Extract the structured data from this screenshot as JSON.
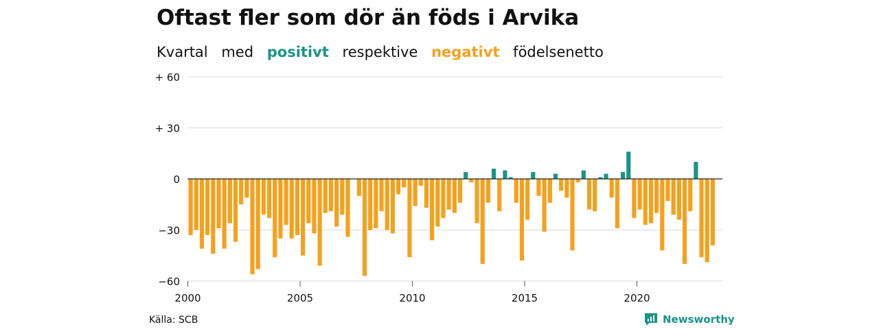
{
  "title": "Oftast fler som dör än föds i Arvika",
  "subtitle": {
    "part1": "Kvartal",
    "part2": "med",
    "positive_word": "positivt",
    "part3": "respektive",
    "negative_word": "negativt",
    "part4": "födelsenetto"
  },
  "source": "Källa: SCB",
  "brand": "Newsworthy",
  "colors": {
    "positive": "#1a9485",
    "negative": "#f4a11d",
    "grid": "#d9d9d9",
    "zero": "#222222"
  },
  "chart_data": {
    "type": "bar",
    "title": "Oftast fler som dör än föds i Arvika",
    "subtitle": "Kvartal med positivt respektive negativt födelsenetto",
    "x_start": "2000-Q1",
    "period": "quarter",
    "x_ticks": [
      "2000",
      "2005",
      "2010",
      "2015",
      "2020"
    ],
    "y_ticks": [
      60,
      30,
      0,
      -30,
      -60
    ],
    "y_tick_labels": [
      "+ 60",
      "+ 30",
      "0",
      "−30",
      "−60"
    ],
    "ylim": [
      -60,
      60
    ],
    "grid": true,
    "values": [
      -33,
      -30,
      -41,
      -33,
      -44,
      -29,
      -41,
      -26,
      -37,
      -15,
      -11,
      -56,
      -53,
      -21,
      -23,
      -46,
      -35,
      -27,
      -35,
      -33,
      -45,
      -26,
      -32,
      -51,
      -20,
      -19,
      -28,
      -21,
      -34,
      0,
      -10,
      -57,
      -30,
      -29,
      -19,
      -30,
      -32,
      -9,
      -5,
      -46,
      -16,
      -4,
      -17,
      -36,
      -28,
      -23,
      -18,
      -20,
      -14,
      4,
      -2,
      -26,
      -50,
      -14,
      6,
      -19,
      5,
      1,
      -14,
      -48,
      -24,
      4,
      -10,
      -31,
      -14,
      3,
      -7,
      -11,
      -42,
      -2,
      5,
      -18,
      -19,
      1,
      3,
      -11,
      -29,
      4,
      16,
      -23,
      -18,
      -27,
      -26,
      -20,
      -42,
      -13,
      -21,
      -24,
      -50,
      -19,
      10,
      -46,
      -49,
      -39
    ]
  }
}
